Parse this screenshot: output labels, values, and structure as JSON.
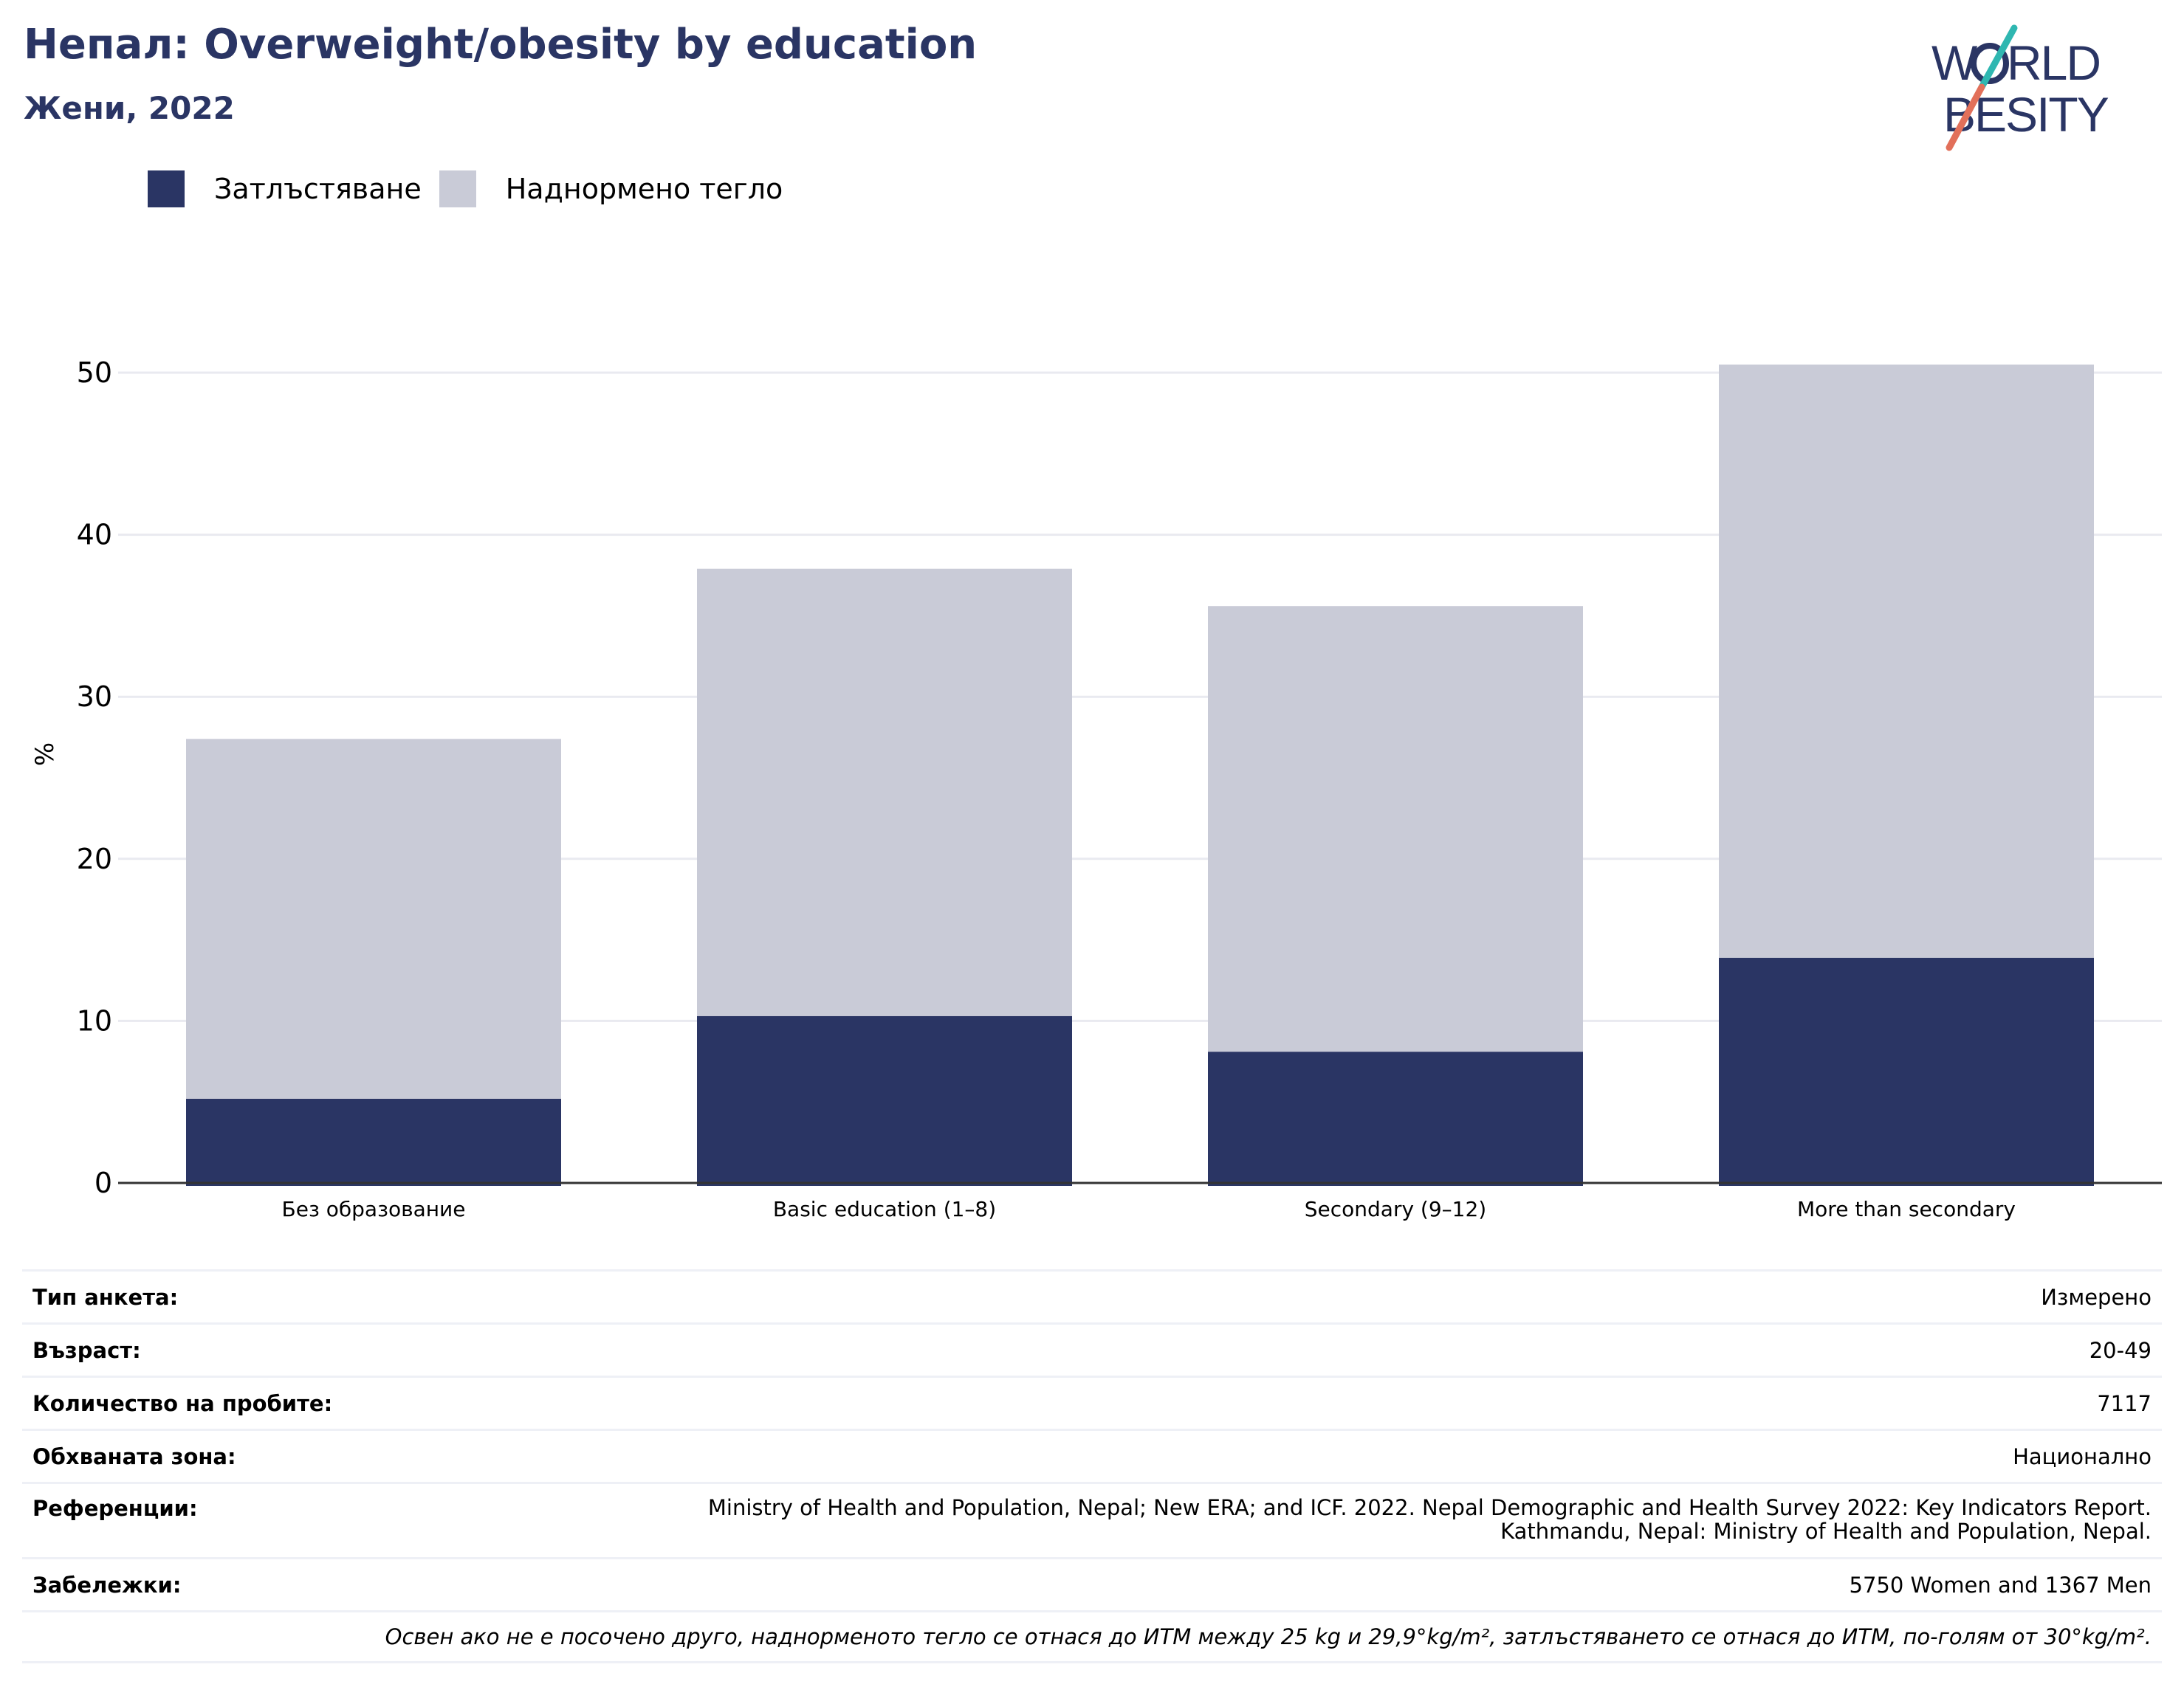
{
  "header": {
    "title": "Непал: Overweight/obesity by education",
    "subtitle": "Жени, 2022"
  },
  "logo": {
    "line1": "WORLD",
    "line2": "OBESITY"
  },
  "colors": {
    "obesity": "#2a3564",
    "overweight": "#c9cbd7",
    "accent_teal": "#2fb7b1",
    "accent_coral": "#e2705a"
  },
  "chart_data": {
    "type": "bar",
    "stacked": true,
    "categories": [
      "Без образование",
      "Basic education (1–8)",
      "Secondary (9–12)",
      "More than secondary"
    ],
    "series": [
      {
        "name": "Затлъстяване",
        "values": [
          5.2,
          10.3,
          8.1,
          13.9
        ]
      },
      {
        "name": "Наднормено тегло",
        "values": [
          22.2,
          27.6,
          27.5,
          36.6
        ]
      }
    ],
    "ylabel": "%",
    "ylim": [
      0,
      55
    ],
    "yticks": [
      0,
      10,
      20,
      30,
      40,
      50
    ],
    "grid": true,
    "legend_position": "top-left"
  },
  "info": {
    "rows": [
      {
        "key": "Тип анкета:",
        "value": "Измерено"
      },
      {
        "key": "Възраст:",
        "value": "20-49"
      },
      {
        "key": "Количество на пробите:",
        "value": "7117"
      },
      {
        "key": "Обхваната зона:",
        "value": "Национално"
      },
      {
        "key": "Референции:",
        "value": "Ministry of Health and Population, Nepal; New ERA; and ICF. 2022. Nepal Demographic and Health Survey 2022: Key Indicators Report. Kathmandu, Nepal: Ministry of Health and Population, Nepal."
      },
      {
        "key": "Забележки:",
        "value": "5750 Women and 1367 Men"
      }
    ],
    "footnote": "Освен ако не е посочено друго, наднорменото тегло се отнася до ИТМ между 25 kg и 29,9°kg/m², затлъстяването се отнася до ИТМ, по-голям от 30°kg/m²."
  }
}
